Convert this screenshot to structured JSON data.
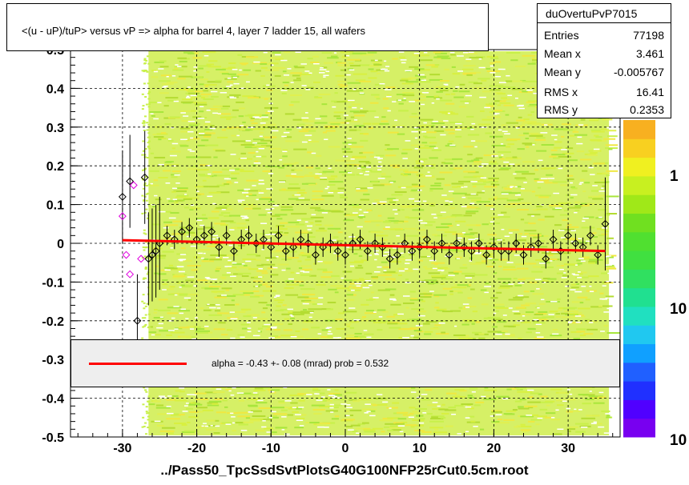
{
  "chart_data": {
    "type": "scatter",
    "title": "<(u - uP)/tuP>  versus   vP => alpha for barrel 4, layer 7 ladder 15, all wafers",
    "xlabel": "../Pass50_TpcSsdSvtPlotsG40G100NFP25rCut0.5cm.root",
    "ylabel": "",
    "xlim": [
      -37,
      37
    ],
    "ylim": [
      -0.5,
      0.5
    ],
    "x_ticks": [
      "-30",
      "-20",
      "-10",
      "0",
      "10",
      "20",
      "30"
    ],
    "y_ticks": [
      "-0.5",
      "-0.4",
      "-0.3",
      "-0.2",
      "-0.1",
      "0",
      "0.1",
      "0.2",
      "0.3",
      "0.4",
      "0.5"
    ],
    "colorbar_labels": [
      "1",
      "10",
      "10"
    ],
    "grid": true,
    "fit": {
      "label": "alpha =   -0.43 +-  0.08 (mrad) prob = 0.532",
      "x": [
        -30,
        35
      ],
      "y": [
        0.008,
        -0.02
      ],
      "color": "#ff0000"
    },
    "profile_points": {
      "x": [
        -30,
        -29,
        -28,
        -27,
        -26.5,
        -26,
        -25.5,
        -25,
        -24,
        -23,
        -22,
        -21,
        -20,
        -19,
        -18,
        -17,
        -16,
        -15,
        -14,
        -13,
        -12,
        -11,
        -10,
        -9,
        -8,
        -7,
        -6,
        -5,
        -4,
        -3,
        -2,
        -1,
        0,
        1,
        2,
        3,
        4,
        5,
        6,
        7,
        8,
        9,
        10,
        11,
        12,
        13,
        14,
        15,
        16,
        17,
        18,
        19,
        20,
        21,
        22,
        23,
        24,
        25,
        26,
        27,
        28,
        29,
        30,
        31,
        32,
        33,
        34,
        35
      ],
      "y": [
        0.12,
        0.16,
        -0.2,
        0.17,
        -0.04,
        -0.03,
        -0.02,
        0.0,
        0.02,
        0.01,
        0.03,
        0.04,
        0.01,
        0.02,
        0.03,
        -0.01,
        0.02,
        -0.02,
        0.01,
        0.02,
        0.0,
        0.01,
        -0.01,
        0.02,
        -0.02,
        -0.01,
        0.01,
        0.0,
        -0.03,
        -0.01,
        0.0,
        -0.02,
        -0.03,
        0.0,
        0.01,
        -0.02,
        0.0,
        -0.01,
        -0.04,
        -0.03,
        0.0,
        -0.02,
        -0.01,
        0.01,
        -0.02,
        0.0,
        -0.03,
        0.0,
        -0.01,
        -0.02,
        0.0,
        -0.03,
        -0.01,
        -0.02,
        -0.02,
        0.0,
        -0.03,
        -0.01,
        0.0,
        -0.04,
        0.01,
        -0.02,
        0.02,
        0.0,
        -0.01,
        0.02,
        -0.03,
        0.05
      ]
    },
    "magenta_points": {
      "x": [
        -30,
        -29.5,
        -28.5,
        -27.5,
        -29
      ],
      "y": [
        0.07,
        -0.03,
        0.15,
        -0.04,
        -0.08
      ]
    }
  },
  "stats": {
    "name": "duOvertuPvP7015",
    "rows": [
      {
        "k": "Entries",
        "v": "77198"
      },
      {
        "k": "Mean x",
        "v": "3.461"
      },
      {
        "k": "Mean y",
        "v": "-0.005767"
      },
      {
        "k": "RMS x",
        "v": "16.41"
      },
      {
        "k": "RMS y",
        "v": "0.2353"
      }
    ]
  }
}
